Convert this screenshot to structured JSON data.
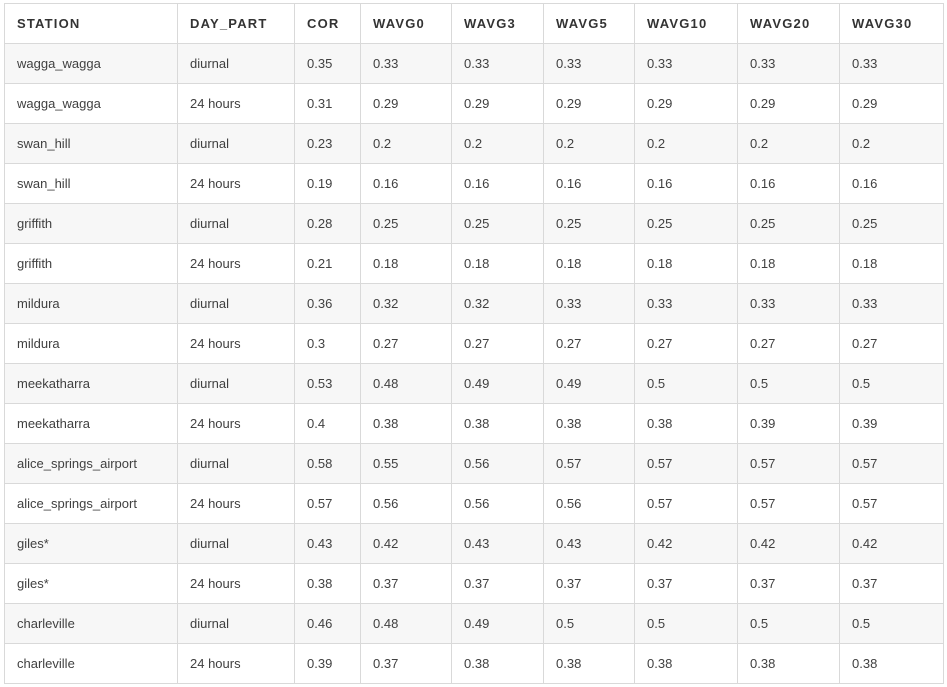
{
  "table": {
    "headers": [
      "STATION",
      "DAY_PART",
      "COR",
      "WAVG0",
      "WAVG3",
      "WAVG5",
      "WAVG10",
      "WAVG20",
      "WAVG30"
    ],
    "rows": [
      [
        "wagga_wagga",
        "diurnal",
        "0.35",
        "0.33",
        "0.33",
        "0.33",
        "0.33",
        "0.33",
        "0.33"
      ],
      [
        "wagga_wagga",
        "24 hours",
        "0.31",
        "0.29",
        "0.29",
        "0.29",
        "0.29",
        "0.29",
        "0.29"
      ],
      [
        "swan_hill",
        "diurnal",
        "0.23",
        "0.2",
        "0.2",
        "0.2",
        "0.2",
        "0.2",
        "0.2"
      ],
      [
        "swan_hill",
        "24 hours",
        "0.19",
        "0.16",
        "0.16",
        "0.16",
        "0.16",
        "0.16",
        "0.16"
      ],
      [
        "griffith",
        "diurnal",
        "0.28",
        "0.25",
        "0.25",
        "0.25",
        "0.25",
        "0.25",
        "0.25"
      ],
      [
        "griffith",
        "24 hours",
        "0.21",
        "0.18",
        "0.18",
        "0.18",
        "0.18",
        "0.18",
        "0.18"
      ],
      [
        "mildura",
        "diurnal",
        "0.36",
        "0.32",
        "0.32",
        "0.33",
        "0.33",
        "0.33",
        "0.33"
      ],
      [
        "mildura",
        "24 hours",
        "0.3",
        "0.27",
        "0.27",
        "0.27",
        "0.27",
        "0.27",
        "0.27"
      ],
      [
        "meekatharra",
        "diurnal",
        "0.53",
        "0.48",
        "0.49",
        "0.49",
        "0.5",
        "0.5",
        "0.5"
      ],
      [
        "meekatharra",
        "24 hours",
        "0.4",
        "0.38",
        "0.38",
        "0.38",
        "0.38",
        "0.39",
        "0.39"
      ],
      [
        "alice_springs_airport",
        "diurnal",
        "0.58",
        "0.55",
        "0.56",
        "0.57",
        "0.57",
        "0.57",
        "0.57"
      ],
      [
        "alice_springs_airport",
        "24 hours",
        "0.57",
        "0.56",
        "0.56",
        "0.56",
        "0.57",
        "0.57",
        "0.57"
      ],
      [
        "giles*",
        "diurnal",
        "0.43",
        "0.42",
        "0.43",
        "0.43",
        "0.42",
        "0.42",
        "0.42"
      ],
      [
        "giles*",
        "24 hours",
        "0.38",
        "0.37",
        "0.37",
        "0.37",
        "0.37",
        "0.37",
        "0.37"
      ],
      [
        "charleville",
        "diurnal",
        "0.46",
        "0.48",
        "0.49",
        "0.5",
        "0.5",
        "0.5",
        "0.5"
      ],
      [
        "charleville",
        "24 hours",
        "0.39",
        "0.37",
        "0.38",
        "0.38",
        "0.38",
        "0.38",
        "0.38"
      ]
    ]
  },
  "colors": {
    "border": "#d9d9d9",
    "row_stripe": "#f7f7f7",
    "text": "#404040",
    "header_text": "#333333"
  }
}
